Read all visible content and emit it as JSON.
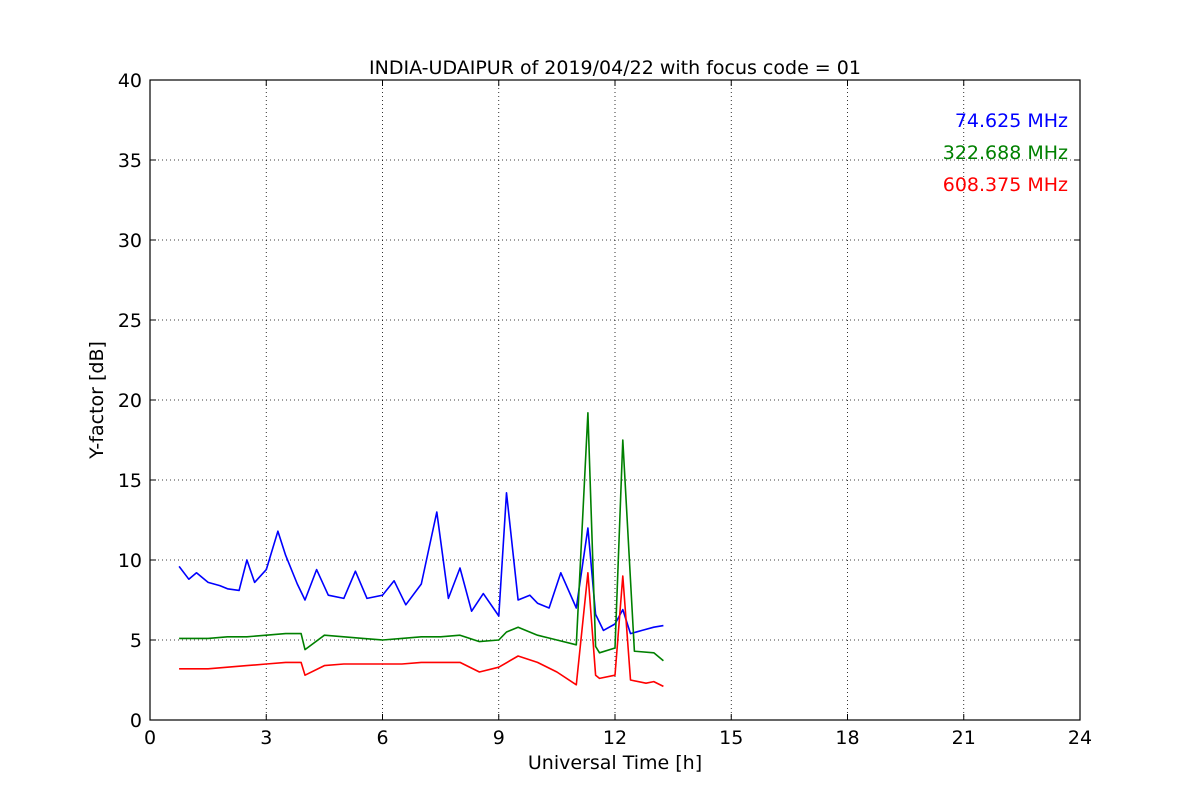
{
  "chart_data": {
    "type": "line",
    "title": "INDIA-UDAIPUR of 2019/04/22 with focus code = 01",
    "xlabel": "Universal Time [h]",
    "ylabel": "Y-factor [dB]",
    "xlim": [
      0,
      24
    ],
    "ylim": [
      0,
      40
    ],
    "xticks": [
      0,
      3,
      6,
      9,
      12,
      15,
      18,
      21,
      24
    ],
    "yticks": [
      0,
      5,
      10,
      15,
      20,
      25,
      30,
      35,
      40
    ],
    "grid": true,
    "legend_position": "top-right",
    "series": [
      {
        "name": "74.625 MHz",
        "color": "#0000ff",
        "x": [
          0.75,
          1.0,
          1.2,
          1.5,
          1.8,
          2.0,
          2.3,
          2.5,
          2.7,
          3.0,
          3.3,
          3.5,
          3.8,
          4.0,
          4.3,
          4.6,
          5.0,
          5.3,
          5.6,
          6.0,
          6.3,
          6.6,
          7.0,
          7.4,
          7.7,
          8.0,
          8.3,
          8.6,
          9.0,
          9.2,
          9.5,
          9.8,
          10.0,
          10.3,
          10.6,
          11.0,
          11.3,
          11.5,
          11.7,
          12.0,
          12.2,
          12.4,
          12.7,
          13.0,
          13.25
        ],
        "y": [
          9.6,
          8.8,
          9.2,
          8.6,
          8.4,
          8.2,
          8.1,
          10.0,
          8.6,
          9.4,
          11.8,
          10.3,
          8.5,
          7.5,
          9.4,
          7.8,
          7.6,
          9.3,
          7.6,
          7.8,
          8.7,
          7.2,
          8.5,
          13.0,
          7.6,
          9.5,
          6.8,
          7.9,
          6.5,
          14.2,
          7.5,
          7.8,
          7.3,
          7.0,
          9.2,
          7.0,
          12.0,
          6.6,
          5.6,
          6.0,
          6.9,
          5.4,
          5.6,
          5.8,
          5.9
        ]
      },
      {
        "name": "322.688 MHz",
        "color": "#008000",
        "x": [
          0.75,
          1.0,
          1.5,
          2.0,
          2.5,
          3.0,
          3.5,
          3.9,
          4.0,
          4.5,
          5.0,
          5.5,
          6.0,
          6.5,
          7.0,
          7.5,
          8.0,
          8.5,
          9.0,
          9.2,
          9.5,
          10.0,
          10.5,
          11.0,
          11.3,
          11.5,
          11.6,
          12.0,
          12.2,
          12.5,
          13.0,
          13.25
        ],
        "y": [
          5.1,
          5.1,
          5.1,
          5.2,
          5.2,
          5.3,
          5.4,
          5.4,
          4.4,
          5.3,
          5.2,
          5.1,
          5.0,
          5.1,
          5.2,
          5.2,
          5.3,
          4.9,
          5.0,
          5.5,
          5.8,
          5.3,
          5.0,
          4.7,
          19.2,
          4.6,
          4.2,
          4.5,
          17.5,
          4.3,
          4.2,
          3.7
        ]
      },
      {
        "name": "608.375 MHz",
        "color": "#ff0000",
        "x": [
          0.75,
          1.0,
          1.5,
          2.0,
          2.5,
          3.0,
          3.5,
          3.9,
          4.0,
          4.5,
          5.0,
          5.5,
          6.0,
          6.5,
          7.0,
          7.5,
          8.0,
          8.5,
          9.0,
          9.5,
          10.0,
          10.5,
          11.0,
          11.3,
          11.5,
          11.6,
          12.0,
          12.2,
          12.4,
          12.8,
          13.0,
          13.25
        ],
        "y": [
          3.2,
          3.2,
          3.2,
          3.3,
          3.4,
          3.5,
          3.6,
          3.6,
          2.8,
          3.4,
          3.5,
          3.5,
          3.5,
          3.5,
          3.6,
          3.6,
          3.6,
          3.0,
          3.3,
          4.0,
          3.6,
          3.0,
          2.2,
          9.2,
          2.8,
          2.6,
          2.8,
          9.0,
          2.5,
          2.3,
          2.4,
          2.1
        ]
      }
    ]
  }
}
